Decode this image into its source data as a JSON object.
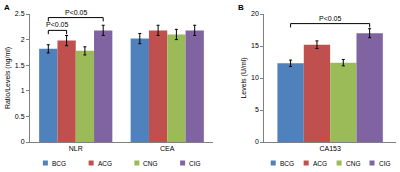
{
  "chart_data": [
    {
      "type": "bar",
      "title": "A",
      "categories": [
        "NLR",
        "CEA"
      ],
      "series": [
        {
          "name": "BCG",
          "color": "#4f81bd",
          "values": [
            1.82,
            2.02
          ],
          "errors": [
            0.08,
            0.1
          ]
        },
        {
          "name": "ACG",
          "color": "#c0504d",
          "values": [
            1.98,
            2.18
          ],
          "errors": [
            0.1,
            0.1
          ]
        },
        {
          "name": "CNG",
          "color": "#9bbb59",
          "values": [
            1.78,
            2.1
          ],
          "errors": [
            0.08,
            0.1
          ]
        },
        {
          "name": "CIG",
          "color": "#8064a2",
          "values": [
            2.18,
            2.18
          ],
          "errors": [
            0.1,
            0.1
          ]
        }
      ],
      "ylim": [
        0,
        2.5
      ],
      "yticks": [
        0,
        0.5,
        1,
        1.5,
        2,
        2.5
      ],
      "y_label": "Ratio/Levels (ng/ml)",
      "grid": false,
      "legend": "bottom",
      "annotations": [
        {
          "text": "P<0.05",
          "category": "NLR",
          "from": "BCG",
          "to": "ACG"
        },
        {
          "text": "P<0.05",
          "category": "NLR",
          "from": "BCG",
          "to": "CIG"
        }
      ]
    },
    {
      "type": "bar",
      "title": "B",
      "categories": [
        "CA153"
      ],
      "series": [
        {
          "name": "BCG",
          "color": "#4f81bd",
          "values": [
            12.3
          ],
          "errors": [
            0.5
          ]
        },
        {
          "name": "ACG",
          "color": "#c0504d",
          "values": [
            15.2
          ],
          "errors": [
            0.6
          ]
        },
        {
          "name": "CNG",
          "color": "#9bbb59",
          "values": [
            12.4
          ],
          "errors": [
            0.5
          ]
        },
        {
          "name": "CIG",
          "color": "#8064a2",
          "values": [
            17.0
          ],
          "errors": [
            0.7
          ]
        }
      ],
      "ylim": [
        0,
        20
      ],
      "yticks": [
        0,
        5,
        10,
        15,
        20
      ],
      "y_label": "Levels (U/ml)",
      "grid": false,
      "legend": "bottom",
      "annotations": [
        {
          "text": "P<0.05",
          "category": "CA153",
          "from": "BCG",
          "to": "CIG"
        }
      ]
    }
  ]
}
